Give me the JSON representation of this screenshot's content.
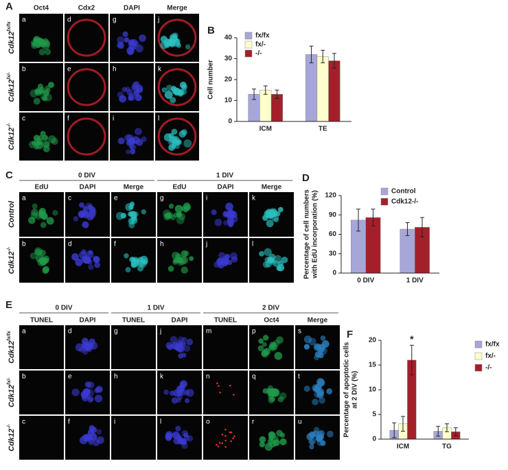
{
  "chart_data": [
    {
      "type": "bar",
      "panel": "B",
      "ylabel": [
        "Cell number"
      ],
      "categories": [
        "ICM",
        "TE"
      ],
      "series": [
        {
          "name": "fx/fx",
          "color": "#a6a6d8",
          "values": [
            13,
            32
          ],
          "errors": [
            2.5,
            4
          ]
        },
        {
          "name": "fx/-",
          "color": "#ffffcc",
          "values": [
            15,
            31
          ],
          "errors": [
            2,
            3
          ]
        },
        {
          "name": "-/-",
          "color": "#a3202a",
          "values": [
            13,
            29
          ],
          "errors": [
            2,
            3.5
          ]
        }
      ],
      "ylim": [
        0,
        40
      ],
      "yticks": [
        0,
        10,
        20,
        30,
        40
      ],
      "legend": "upper left"
    },
    {
      "type": "bar",
      "panel": "D",
      "ylabel": [
        "Percentage of cell numbers",
        "with EdU incorporation (%)"
      ],
      "categories": [
        "0 DIV",
        "1 DIV"
      ],
      "series": [
        {
          "name": "Control",
          "color": "#a6a6d8",
          "values": [
            82,
            68
          ],
          "errors": [
            17,
            10
          ]
        },
        {
          "name": "Cdk12-/-",
          "color": "#a3202a",
          "values": [
            86,
            71
          ],
          "errors": [
            13,
            15
          ]
        }
      ],
      "ylim": [
        0,
        120
      ],
      "yticks": [
        0,
        30,
        60,
        90,
        120
      ],
      "legend": "upper right"
    },
    {
      "type": "bar",
      "panel": "F",
      "ylabel": [
        "Percentage of apoptotic cells",
        "at 2 DIV (%)"
      ],
      "categories": [
        "ICM",
        "TG"
      ],
      "series": [
        {
          "name": "fx/fx",
          "color": "#a6a6d8",
          "values": [
            1.8,
            1.6
          ],
          "errors": [
            1.5,
            1
          ]
        },
        {
          "name": "fx/-",
          "color": "#ffffcc",
          "values": [
            3.1,
            2.3
          ],
          "errors": [
            1.5,
            0.8
          ]
        },
        {
          "name": "-/-",
          "color": "#a3202a",
          "values": [
            16,
            1.5
          ],
          "errors": [
            3,
            0.8
          ]
        }
      ],
      "ylim": [
        0,
        20
      ],
      "yticks": [
        0,
        5,
        10,
        15,
        20
      ],
      "legend": "right",
      "annotation": "*"
    }
  ],
  "panels": {
    "A": {
      "letter": "A",
      "columns": [
        "Oct4",
        "Cdx2",
        "DAPI",
        "Merge"
      ],
      "rows": [
        {
          "text": "Cdk12",
          "sup": "fx/fx"
        },
        {
          "text": "Cdk12",
          "sup": "fx/-"
        },
        {
          "text": "Cdk12",
          "sup": "-/-"
        }
      ],
      "images": [
        [
          "a",
          "d",
          "g",
          "j"
        ],
        [
          "b",
          "e",
          "h",
          "k"
        ],
        [
          "c",
          "f",
          "i",
          "l"
        ]
      ]
    },
    "C": {
      "letter": "C",
      "groups": [
        "0 DIV",
        "1 DIV"
      ],
      "columns": [
        "EdU",
        "DAPI",
        "Merge",
        "EdU",
        "DAPI",
        "Merge"
      ],
      "rows": [
        {
          "text": "Control"
        },
        {
          "text": "Cdk12",
          "sup": "-/-"
        }
      ],
      "images": [
        [
          "a",
          "c",
          "e",
          "g",
          "i",
          "k"
        ],
        [
          "b",
          "d",
          "f",
          "h",
          "j",
          "l"
        ]
      ]
    },
    "E": {
      "letter": "E",
      "groups": [
        "0 DIV",
        "1 DIV",
        "2 DIV"
      ],
      "columns": [
        "TUNEL",
        "DAPI",
        "TUNEL",
        "DAPI",
        "TUNEL",
        "Oct4",
        "Merge"
      ],
      "rows": [
        {
          "text": "Cdk12",
          "sup": "fx/fx"
        },
        {
          "text": "Cdk12",
          "sup": "fx/-"
        },
        {
          "text": "Cdk12",
          "sup": "-/-"
        }
      ],
      "images": [
        [
          "a",
          "d",
          "g",
          "j",
          "m",
          "p",
          "s"
        ],
        [
          "b",
          "e",
          "h",
          "k",
          "n",
          "q",
          "t"
        ],
        [
          "c",
          "f",
          "i",
          "l",
          "o",
          "r",
          "u"
        ]
      ]
    }
  }
}
